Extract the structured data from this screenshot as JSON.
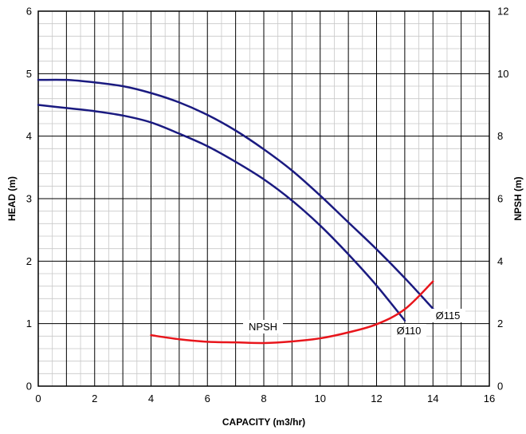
{
  "chart_data": {
    "type": "line",
    "title": "",
    "xlabel": "CAPACITY (m3/hr)",
    "ylabel": "HEAD (m)",
    "y2label": "NPSH (m)",
    "xlim": [
      0,
      16
    ],
    "ylim": [
      0,
      6
    ],
    "y2lim": [
      0,
      12
    ],
    "x_ticks": [
      "0",
      "2",
      "4",
      "6",
      "8",
      "10",
      "12",
      "14",
      "16"
    ],
    "y_ticks": [
      "0",
      "1",
      "2",
      "3",
      "4",
      "5",
      "6"
    ],
    "y2_ticks": [
      "0",
      "2",
      "4",
      "6",
      "8",
      "10",
      "12"
    ],
    "grid": true,
    "series": [
      {
        "name": "Ø115",
        "axis": "left",
        "color": "#1a1a80",
        "x": [
          0,
          1,
          2,
          3,
          4,
          5,
          6,
          7,
          8,
          9,
          10,
          11,
          12,
          13,
          14
        ],
        "y": [
          4.9,
          4.9,
          4.86,
          4.8,
          4.69,
          4.54,
          4.34,
          4.09,
          3.79,
          3.45,
          3.05,
          2.62,
          2.19,
          1.73,
          1.24
        ]
      },
      {
        "name": "Ø110",
        "axis": "left",
        "color": "#1a1a80",
        "x": [
          0,
          1,
          2,
          3,
          4,
          5,
          6,
          7,
          8,
          9,
          10,
          11,
          12,
          13
        ],
        "y": [
          4.5,
          4.45,
          4.4,
          4.33,
          4.22,
          4.04,
          3.84,
          3.59,
          3.31,
          2.97,
          2.57,
          2.11,
          1.61,
          1.05
        ]
      },
      {
        "name": "NPSH",
        "axis": "right",
        "color": "#e8151b",
        "x": [
          4,
          5,
          6,
          7,
          8,
          9,
          10,
          11,
          12,
          13,
          14
        ],
        "y": [
          1.63,
          1.5,
          1.42,
          1.4,
          1.38,
          1.43,
          1.53,
          1.72,
          1.98,
          2.46,
          3.35
        ]
      }
    ]
  }
}
